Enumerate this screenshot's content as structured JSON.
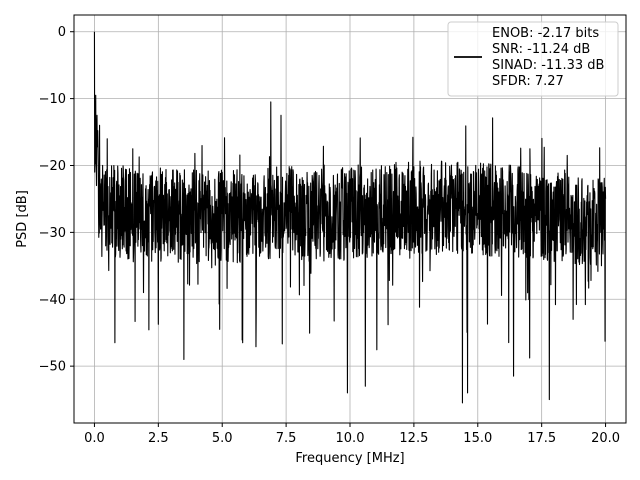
{
  "chart_data": {
    "type": "line",
    "xlabel": "Frequency [MHz]",
    "ylabel": "PSD [dB]",
    "xlim": [
      -0.8,
      20.8
    ],
    "ylim": [
      -58.5,
      2.5
    ],
    "xticks": [
      0.0,
      2.5,
      5.0,
      7.5,
      10.0,
      12.5,
      15.0,
      17.5,
      20.0
    ],
    "xtick_labels": [
      "0.0",
      "2.5",
      "5.0",
      "7.5",
      "10.0",
      "12.5",
      "15.0",
      "17.5",
      "20.0"
    ],
    "yticks": [
      0,
      -10,
      -20,
      -30,
      -40,
      -50
    ],
    "ytick_labels": [
      "0",
      "−10",
      "−20",
      "−30",
      "−40",
      "−50"
    ],
    "grid": true,
    "legend": {
      "placement": "top-right",
      "lines": [
        "ENOB: -2.17 bits",
        "SNR: -11.24 dB",
        "SINAD: -11.33 dB",
        "SFDR: 7.27"
      ]
    },
    "series": [
      {
        "color": "#000000",
        "x_start": 0.0,
        "x_end": 20.0,
        "description_points": [
          [
            0.0,
            0.0
          ],
          [
            0.02,
            -17.5
          ],
          [
            0.05,
            -9.5
          ],
          [
            0.08,
            -23.0
          ],
          [
            0.1,
            -12.5
          ],
          [
            0.15,
            -20.0
          ],
          [
            0.2,
            -14.0
          ],
          [
            0.3,
            -28.0
          ],
          [
            0.5,
            -16.0
          ],
          [
            0.8,
            -46.5
          ],
          [
            1.5,
            -17.5
          ],
          [
            3.5,
            -49.0
          ],
          [
            4.9,
            -44.5
          ],
          [
            5.8,
            -46.5
          ],
          [
            6.9,
            -10.5
          ],
          [
            7.3,
            -12.5
          ],
          [
            9.9,
            -54.0
          ],
          [
            10.6,
            -53.0
          ],
          [
            14.4,
            -55.5
          ],
          [
            14.6,
            -54.0
          ],
          [
            16.4,
            -51.5
          ],
          [
            17.8,
            -55.0
          ],
          [
            18.5,
            -18.5
          ],
          [
            20.0,
            -25.0
          ]
        ]
      }
    ]
  }
}
